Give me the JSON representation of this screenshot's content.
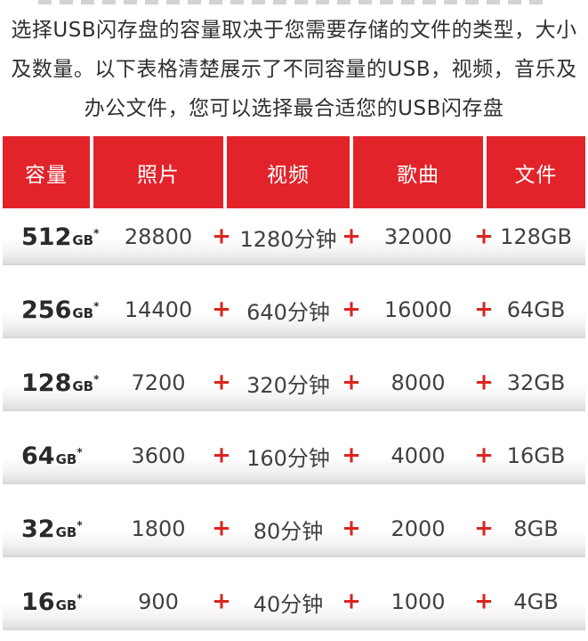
{
  "intro": {
    "lines": [
      "选择USB闪存盘的容量取决于您需要存储的文件的类型，大小",
      "及数量。以下表格清楚展示了不同容量的USB，视频，音乐及",
      "办公文件，您可以选择最合适您的USB闪存盘"
    ]
  },
  "colors": {
    "header_red": "#e2232a",
    "plus_red": "#da241f",
    "body_text": "#303030",
    "number_text": "#3e4144"
  },
  "table": {
    "plus_symbol": "+",
    "headers": [
      "容量",
      "照片",
      "视频",
      "歌曲",
      "文件"
    ],
    "rows": [
      {
        "capacity_value": "512",
        "capacity_unit": "GB",
        "capacity_note": "*",
        "photos": "28800",
        "video": "1280分钟",
        "songs": "32000",
        "files": "128GB"
      },
      {
        "capacity_value": "256",
        "capacity_unit": "GB",
        "capacity_note": "*",
        "photos": "14400",
        "video": "640分钟",
        "songs": "16000",
        "files": "64GB"
      },
      {
        "capacity_value": "128",
        "capacity_unit": "GB",
        "capacity_note": "*",
        "photos": "7200",
        "video": "320分钟",
        "songs": "8000",
        "files": "32GB"
      },
      {
        "capacity_value": "64",
        "capacity_unit": "GB",
        "capacity_note": "*",
        "photos": "3600",
        "video": "160分钟",
        "songs": "4000",
        "files": "16GB"
      },
      {
        "capacity_value": "32",
        "capacity_unit": "GB",
        "capacity_note": "*",
        "photos": "1800",
        "video": "80分钟",
        "songs": "2000",
        "files": "8GB"
      },
      {
        "capacity_value": "16",
        "capacity_unit": "GB",
        "capacity_note": "*",
        "photos": "900",
        "video": "40分钟",
        "songs": "1000",
        "files": "4GB"
      }
    ]
  }
}
